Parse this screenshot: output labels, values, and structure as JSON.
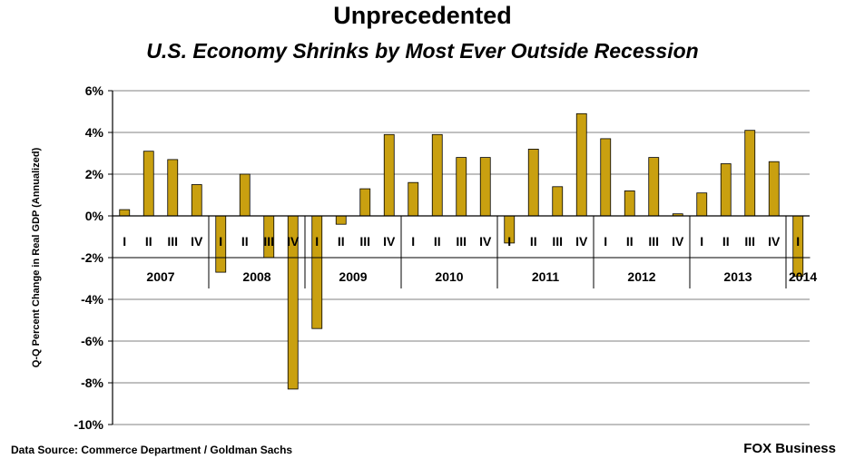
{
  "title": "Unprecedented",
  "subtitle": "U.S. Economy Shrinks by Most Ever Outside Recession",
  "source": "Data Source: Commerce Department / Goldman Sachs",
  "brand": "FOX Business",
  "colors": {
    "bar": "#C9A010",
    "bar_edge": "#000000",
    "grid": "#808080"
  },
  "chart_data": {
    "type": "bar",
    "ylabel": "Q-Q Percent Change in Real GDP (Annualized)",
    "ylim": [
      -10,
      6
    ],
    "yticks": [
      6,
      4,
      2,
      0,
      -2,
      -4,
      -6,
      -8,
      -10
    ],
    "ytick_labels": [
      "6%",
      "4%",
      "2%",
      "0%",
      "-2%",
      "-4%",
      "-6%",
      "-8%",
      "-10%"
    ],
    "grid": true,
    "categories": [
      "I",
      "II",
      "III",
      "IV",
      "I",
      "II",
      "III",
      "IV",
      "I",
      "II",
      "III",
      "IV",
      "I",
      "II",
      "III",
      "IV",
      "I",
      "II",
      "III",
      "IV",
      "I",
      "II",
      "III",
      "IV",
      "I",
      "II",
      "III",
      "IV",
      "I"
    ],
    "years": [
      {
        "label": "2007",
        "quarters": 4
      },
      {
        "label": "2008",
        "quarters": 4
      },
      {
        "label": "2009",
        "quarters": 4
      },
      {
        "label": "2010",
        "quarters": 4
      },
      {
        "label": "2011",
        "quarters": 4
      },
      {
        "label": "2012",
        "quarters": 4
      },
      {
        "label": "2013",
        "quarters": 4
      },
      {
        "label": "2014",
        "quarters": 1
      }
    ],
    "values": [
      0.3,
      3.1,
      2.7,
      1.5,
      -2.7,
      2.0,
      -2.0,
      -8.3,
      -5.4,
      -0.4,
      1.3,
      3.9,
      1.6,
      3.9,
      2.8,
      2.8,
      -1.3,
      3.2,
      1.4,
      4.9,
      3.7,
      1.2,
      2.8,
      0.1,
      1.1,
      2.5,
      4.1,
      2.6,
      -2.9
    ]
  }
}
